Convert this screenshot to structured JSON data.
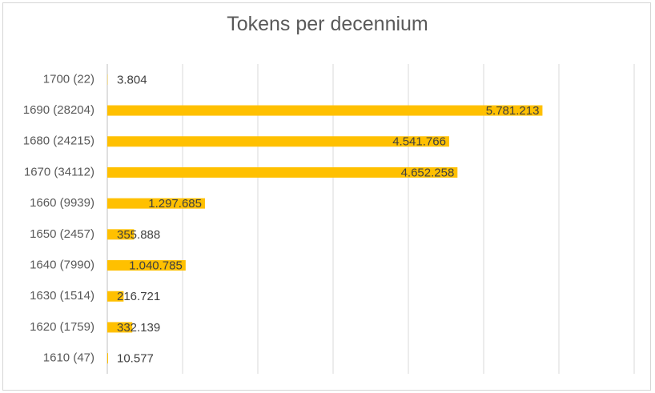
{
  "chart_data": {
    "type": "bar",
    "orientation": "horizontal",
    "title": "Tokens per decennium",
    "categories": [
      "1610 (47)",
      "1620 (1759)",
      "1630 (1514)",
      "1640 (7990)",
      "1650 (2457)",
      "1660 (9939)",
      "1670 (34112)",
      "1680 (24215)",
      "1690 (28204)",
      "1700 (22)"
    ],
    "values": [
      10577,
      332139,
      216721,
      1040785,
      355888,
      1297685,
      4652258,
      4541766,
      5781213,
      3804
    ],
    "data_labels": [
      "10.577",
      "332.139",
      "216.721",
      "1.040.785",
      "355.888",
      "1.297.685",
      "4.652.258",
      "4.541.766",
      "5.781.213",
      "3.804"
    ],
    "xlim": [
      0,
      7000000
    ],
    "grid": "vertical",
    "bar_color": "#FFC000",
    "xlabel": "",
    "ylabel": ""
  }
}
